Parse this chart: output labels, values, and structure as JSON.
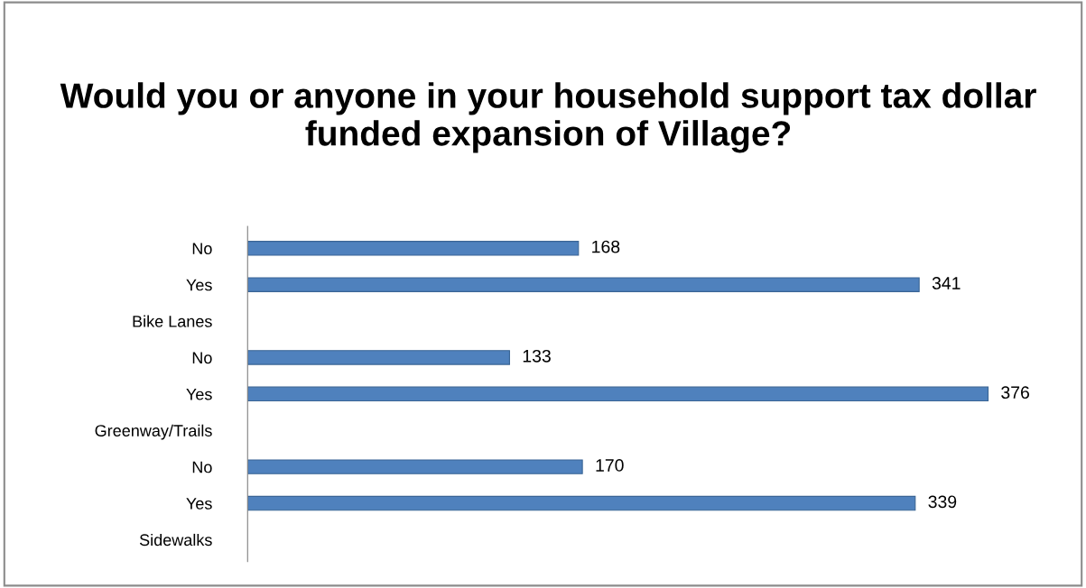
{
  "chart_data": {
    "type": "bar",
    "orientation": "horizontal",
    "title": "Would you or anyone in your household support tax dollar funded expansion of Village?",
    "categories": [
      "No",
      "Yes",
      "Bike Lanes",
      "No",
      "Yes",
      "Greenway/Trails",
      "No",
      "Yes",
      "Sidewalks"
    ],
    "values": [
      168,
      341,
      null,
      133,
      376,
      null,
      170,
      339,
      null
    ],
    "color": "#4f81bd",
    "data_labels": true,
    "grid": false,
    "legend": false
  }
}
